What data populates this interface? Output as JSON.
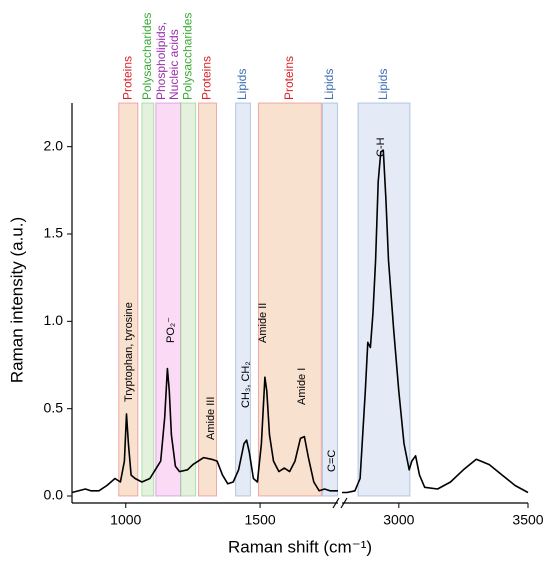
{
  "chart_data": {
    "type": "line",
    "xlabel": "Raman shift (cm⁻¹)",
    "ylabel": "Raman intensity (a.u.)",
    "xlim": [
      800,
      3500
    ],
    "xbreak": [
      1790,
      2780
    ],
    "xticks": [
      1000,
      1500,
      3000,
      3500
    ],
    "ylim": [
      -0.04,
      2.25
    ],
    "yticks": [
      {
        "value": 0,
        "label": "0.0"
      },
      0.5,
      {
        "value": 1,
        "label": "1.0"
      },
      1.5,
      {
        "value": 2,
        "label": "2.0"
      }
    ],
    "series": [
      {
        "color": "#000000",
        "x": [
          800,
          850,
          870,
          900,
          930,
          960,
          980,
          995,
          1003,
          1010,
          1020,
          1035,
          1060,
          1090,
          1110,
          1130,
          1145,
          1155,
          1162,
          1170,
          1185,
          1200,
          1230,
          1250,
          1270,
          1290,
          1320,
          1340,
          1360,
          1380,
          1400,
          1420,
          1440,
          1450,
          1460,
          1475,
          1490,
          1505,
          1518,
          1525,
          1535,
          1550,
          1570,
          1590,
          1610,
          1630,
          1650,
          1665,
          1680,
          1700,
          1720,
          1740,
          1760,
          1790,
          2000,
          2780,
          2800,
          2830,
          2850,
          2870,
          2880,
          2890,
          2900,
          2910,
          2920,
          2930,
          2940,
          2950,
          2960,
          2980,
          3000,
          3020,
          3040,
          3050,
          3065,
          3080,
          3100,
          3150,
          3200,
          3250,
          3300,
          3350,
          3400,
          3450,
          3500
        ],
        "values": [
          0.02,
          0.04,
          0.03,
          0.03,
          0.06,
          0.1,
          0.08,
          0.2,
          0.47,
          0.3,
          0.12,
          0.1,
          0.08,
          0.1,
          0.15,
          0.2,
          0.45,
          0.73,
          0.6,
          0.35,
          0.17,
          0.14,
          0.15,
          0.18,
          0.2,
          0.22,
          0.21,
          0.2,
          0.12,
          0.07,
          0.08,
          0.15,
          0.3,
          0.32,
          0.25,
          0.1,
          0.08,
          0.3,
          0.68,
          0.6,
          0.35,
          0.2,
          0.14,
          0.16,
          0.14,
          0.2,
          0.33,
          0.34,
          0.22,
          0.08,
          0.03,
          0.04,
          0.03,
          0.03,
          null,
          0.02,
          0.02,
          0.03,
          0.1,
          0.6,
          0.88,
          0.85,
          1.05,
          1.35,
          1.8,
          1.97,
          1.98,
          1.7,
          1.35,
          0.95,
          0.6,
          0.3,
          0.15,
          0.2,
          0.23,
          0.12,
          0.05,
          0.04,
          0.08,
          0.15,
          0.21,
          0.18,
          0.12,
          0.06,
          0.02
        ]
      }
    ],
    "bands": [
      {
        "label": "Proteins",
        "start": 974,
        "end": 1045,
        "color": "#d9232a",
        "fill": "#f9e1cf"
      },
      {
        "label": "Polysaccharides",
        "start": 1060,
        "end": 1104,
        "color": "#3aaa35",
        "fill": "#e4f2dd"
      },
      {
        "label": [
          "Phospholipids,",
          "Nucleic acids"
        ],
        "start": 1112,
        "end": 1205,
        "color": "#9b2fae",
        "fill": "#fbdaf6"
      },
      {
        "label": "Polysaccharides",
        "start": 1205,
        "end": 1260,
        "color": "#3aaa35",
        "fill": "#e4f2dd"
      },
      {
        "label": "Proteins",
        "start": 1271,
        "end": 1338,
        "color": "#d9232a",
        "fill": "#f9e1cf"
      },
      {
        "label": "Lipids",
        "start": 1409,
        "end": 1464,
        "color": "#3f6fb5",
        "fill": "#e4ebf7"
      },
      {
        "label": "Proteins",
        "start": 1494,
        "end": 1728,
        "color": "#d9232a",
        "fill": "#f9e1cf"
      },
      {
        "label": "Lipids",
        "start": 1732,
        "end": 1788,
        "color": "#3f6fb5",
        "fill": "#e4ebf7"
      },
      {
        "label": "Lipids",
        "start": 2842,
        "end": 3043,
        "color": "#3f6fb5",
        "fill": "#e4ebf7"
      }
    ],
    "annotations": [
      "Tryptophan, tyrosine",
      "PO₂⁻",
      "Amide III",
      "CH₃, CH₂",
      "Amide II",
      "Amide I",
      "C=C",
      "C-H"
    ]
  }
}
